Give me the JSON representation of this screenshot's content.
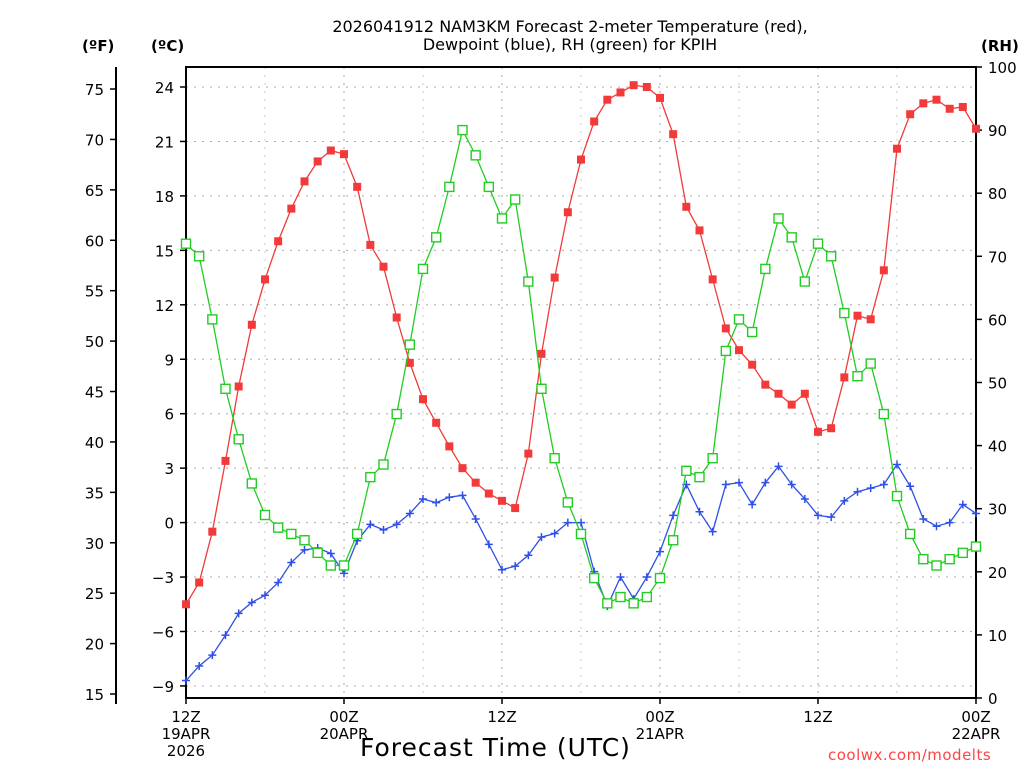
{
  "chart_data": {
    "type": "line",
    "title": "2026041912 NAM3KM Forecast 2-meter Temperature (red),\nDewpoint (blue), RH (green) for KPIH",
    "xlabel": "Forecast Time (UTC)",
    "ylabel_left_outer": "(ºF)",
    "ylabel_left_inner": "(ºC)",
    "ylabel_right": "(RH)",
    "x_range_hours": [
      0,
      60
    ],
    "x_ticks": [
      {
        "hour": 0,
        "lines": [
          "12Z",
          "19APR",
          "2026"
        ]
      },
      {
        "hour": 12,
        "lines": [
          "00Z",
          "20APR"
        ]
      },
      {
        "hour": 24,
        "lines": [
          "12Z"
        ]
      },
      {
        "hour": 36,
        "lines": [
          "00Z",
          "21APR"
        ]
      },
      {
        "hour": 48,
        "lines": [
          "12Z"
        ]
      },
      {
        "hour": 60,
        "lines": [
          "00Z",
          "22APR"
        ]
      }
    ],
    "y_celsius_range": [
      -9.8,
      25.3
    ],
    "y_celsius_ticks": [
      -9,
      -6,
      -3,
      0,
      3,
      6,
      9,
      12,
      15,
      18,
      21,
      24
    ],
    "y_fahrenheit_ticks": [
      15,
      20,
      25,
      30,
      35,
      40,
      45,
      50,
      55,
      60,
      65,
      70,
      75
    ],
    "y_rh_range": [
      0,
      100
    ],
    "y_rh_ticks": [
      0,
      10,
      20,
      30,
      40,
      50,
      60,
      70,
      80,
      90,
      100
    ],
    "grid": true,
    "series": [
      {
        "name": "Temperature (°C)",
        "color": "#f23a3a",
        "marker": "filled-square",
        "axis": "celsius",
        "values": [
          -4.5,
          -3.3,
          -0.5,
          3.4,
          7.5,
          10.9,
          13.4,
          15.5,
          17.3,
          18.8,
          19.9,
          20.5,
          20.3,
          18.5,
          15.3,
          14.1,
          11.3,
          8.8,
          6.8,
          5.5,
          4.2,
          3.0,
          2.2,
          1.6,
          1.2,
          0.8,
          3.8,
          9.3,
          13.5,
          17.1,
          20.0,
          22.1,
          23.3,
          23.7,
          24.1,
          24.0,
          23.4,
          21.4,
          17.4,
          16.1,
          13.4,
          10.7,
          9.5,
          8.7,
          7.6,
          7.1,
          6.5,
          7.1,
          5.0,
          5.2,
          8.0,
          11.4,
          11.2,
          13.9,
          20.6,
          22.5,
          23.1,
          23.3,
          22.8,
          22.9,
          21.7
        ]
      },
      {
        "name": "Dewpoint (°C)",
        "color": "#2e4fe8",
        "marker": "plus",
        "axis": "celsius",
        "values": [
          -8.7,
          -7.9,
          -7.3,
          -6.2,
          -5.0,
          -4.4,
          -4.0,
          -3.3,
          -2.2,
          -1.5,
          -1.4,
          -1.7,
          -2.8,
          -1.0,
          -0.1,
          -0.4,
          -0.1,
          0.5,
          1.3,
          1.1,
          1.4,
          1.5,
          0.2,
          -1.2,
          -2.6,
          -2.4,
          -1.8,
          -0.8,
          -0.6,
          0.0,
          0.0,
          -2.7,
          -4.6,
          -3.0,
          -4.2,
          -3.0,
          -1.6,
          0.4,
          2.1,
          0.6,
          -0.5,
          2.1,
          2.2,
          1.0,
          2.2,
          3.1,
          2.1,
          1.3,
          0.4,
          0.3,
          1.2,
          1.7,
          1.9,
          2.1,
          3.2,
          2.0,
          0.2,
          -0.2,
          0.0,
          1.0,
          0.5
        ]
      },
      {
        "name": "RH (%)",
        "color": "#22cc22",
        "marker": "open-square",
        "axis": "rh",
        "values": [
          72,
          70,
          60,
          49,
          41,
          34,
          29,
          27,
          26,
          25,
          23,
          21,
          21,
          26,
          35,
          37,
          45,
          56,
          68,
          73,
          81,
          90,
          86,
          81,
          76,
          79,
          66,
          49,
          38,
          31,
          26,
          19,
          15,
          16,
          15,
          16,
          19,
          25,
          36,
          35,
          38,
          55,
          60,
          58,
          68,
          76,
          73,
          66,
          72,
          70,
          61,
          51,
          53,
          45,
          32,
          26,
          22,
          21,
          22,
          23,
          24
        ]
      }
    ]
  },
  "credit": "coolwx.com/modelts"
}
